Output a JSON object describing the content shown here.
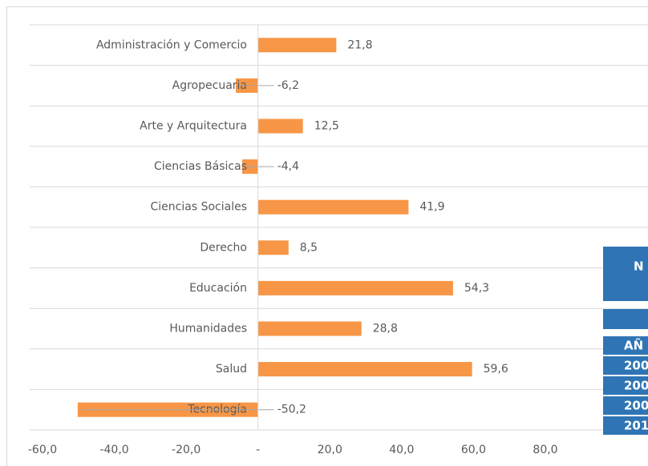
{
  "chart_data": {
    "type": "barh",
    "categories": [
      "Administración y Comercio",
      "Agropecuaria",
      "Arte y Arquitectura",
      "Ciencias Básicas",
      "Ciencias Sociales",
      "Derecho",
      "Educación",
      "Humanidades",
      "Salud",
      "Tecnología"
    ],
    "values": [
      21.8,
      -6.2,
      12.5,
      -4.4,
      41.9,
      8.5,
      54.3,
      28.8,
      59.6,
      -50.2
    ],
    "value_labels": [
      "21,8",
      "-6,2",
      "12,5",
      "-4,4",
      "41,9",
      "8,5",
      "54,3",
      "28,8",
      "59,6",
      "-50,2"
    ],
    "color": "#f79646",
    "xlim": [
      -60,
      80
    ],
    "xticks": [
      {
        "value": -60,
        "label": "-60,0"
      },
      {
        "value": -40,
        "label": "-40,0"
      },
      {
        "value": -20,
        "label": "-20,0"
      },
      {
        "value": 0,
        "label": "-"
      },
      {
        "value": 20,
        "label": "20,0"
      },
      {
        "value": 40,
        "label": "40,0"
      },
      {
        "value": 60,
        "label": "60,0"
      },
      {
        "value": 80,
        "label": "80,0"
      }
    ],
    "grid": true
  },
  "table": {
    "header": "N",
    "rows": [
      "AÑ",
      "200",
      "200",
      "200",
      "201"
    ]
  }
}
